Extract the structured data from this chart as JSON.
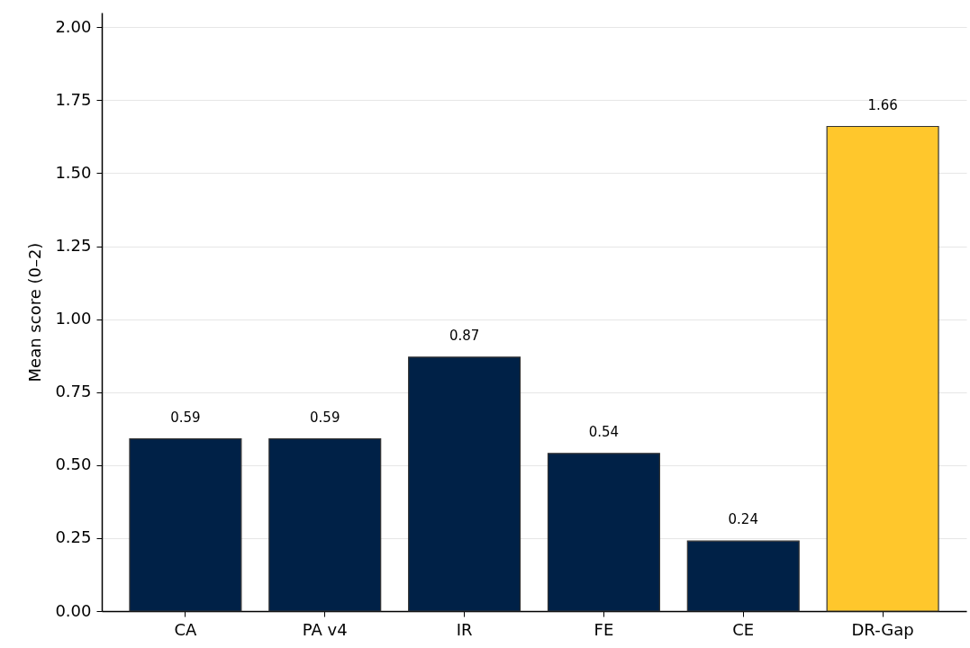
{
  "chart_data": {
    "type": "bar",
    "ylabel": "Mean score (0–2)",
    "categories": [
      "CA",
      "PA v4",
      "IR",
      "FE",
      "CE",
      "DR-Gap"
    ],
    "values": [
      0.59,
      0.59,
      0.87,
      0.54,
      0.24,
      1.66
    ],
    "colors": [
      "#002147",
      "#002147",
      "#002147",
      "#002147",
      "#002147",
      "#ffc72c"
    ],
    "ylim": [
      0,
      2.05
    ],
    "yticks": [
      {
        "value": 0,
        "label": "0.00"
      },
      0.25,
      {
        "value": 0.5,
        "label": "0.50"
      },
      0.75,
      {
        "value": 1,
        "label": "1.00"
      },
      1.25,
      {
        "value": 1.5,
        "label": "1.50"
      },
      1.75,
      {
        "value": 2,
        "label": "2.00"
      }
    ],
    "data_labels": true,
    "grid": "y"
  }
}
